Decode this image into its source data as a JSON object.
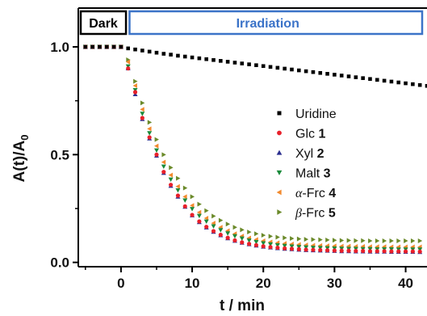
{
  "chart_data": {
    "type": "scatter",
    "xlabel": "t / min",
    "ylabel": "A(t)/A",
    "ylabel_subscript": "0",
    "xlim": [
      -6,
      43
    ],
    "ylim": [
      -0.02,
      1.18
    ],
    "xticks": [
      "0",
      "10",
      "20",
      "30",
      "40"
    ],
    "yticks": [
      "0.0",
      "0.5",
      "1.0"
    ],
    "annotations": {
      "dark": "Dark",
      "irradiation": "Irradiation",
      "dark_range": [
        -6,
        0.7
      ],
      "irradiation_range": [
        1.2,
        43
      ]
    },
    "legend_placement": "center-right",
    "series": [
      {
        "name": "Uridine",
        "label_plain": "Uridine",
        "color": "#000000",
        "marker": "square",
        "x": [
          -5,
          -4,
          -3,
          -2,
          -1,
          0,
          1,
          2,
          3,
          4,
          5,
          6,
          7,
          8,
          9,
          10,
          11,
          12,
          13,
          14,
          15,
          16,
          17,
          18,
          19,
          20,
          21,
          22,
          23,
          24,
          25,
          26,
          27,
          28,
          29,
          30,
          31,
          32,
          33,
          34,
          35,
          36,
          37,
          38,
          39,
          40,
          41,
          42,
          43
        ],
        "y": [
          1.0,
          1.0,
          1.0,
          1.0,
          1.0,
          1.0,
          0.993,
          0.988,
          0.983,
          0.978,
          0.973,
          0.968,
          0.964,
          0.959,
          0.955,
          0.951,
          0.947,
          0.943,
          0.939,
          0.935,
          0.931,
          0.927,
          0.923,
          0.919,
          0.915,
          0.911,
          0.907,
          0.903,
          0.899,
          0.895,
          0.891,
          0.887,
          0.883,
          0.879,
          0.875,
          0.871,
          0.867,
          0.863,
          0.859,
          0.855,
          0.851,
          0.847,
          0.843,
          0.839,
          0.835,
          0.831,
          0.827,
          0.823,
          0.819
        ]
      },
      {
        "name": "Glc 1",
        "label_plain": "Glc ",
        "label_bold": "1",
        "color": "#e8202a",
        "marker": "circle",
        "x": [
          -5,
          -4,
          -3,
          -2,
          -1,
          0,
          1,
          2,
          3,
          4,
          5,
          6,
          7,
          8,
          9,
          10,
          11,
          12,
          13,
          14,
          15,
          16,
          17,
          18,
          19,
          20,
          21,
          22,
          23,
          24,
          25,
          26,
          27,
          28,
          29,
          30,
          31,
          32,
          33,
          34,
          35,
          36,
          37,
          38,
          39,
          40,
          41,
          42
        ],
        "y": [
          1.0,
          1.0,
          1.0,
          1.0,
          1.0,
          1.0,
          0.9,
          0.79,
          0.67,
          0.58,
          0.5,
          0.42,
          0.36,
          0.31,
          0.26,
          0.22,
          0.19,
          0.165,
          0.145,
          0.128,
          0.114,
          0.102,
          0.093,
          0.086,
          0.08,
          0.075,
          0.071,
          0.068,
          0.065,
          0.063,
          0.061,
          0.059,
          0.058,
          0.057,
          0.056,
          0.055,
          0.054,
          0.054,
          0.053,
          0.053,
          0.052,
          0.052,
          0.052,
          0.051,
          0.051,
          0.051,
          0.051,
          0.05
        ]
      },
      {
        "name": "Xyl 2",
        "label_plain": "Xyl ",
        "label_bold": "2",
        "color": "#2b2f8f",
        "marker": "triangle-up",
        "x": [
          -5,
          -4,
          -3,
          -2,
          -1,
          0,
          1,
          2,
          3,
          4,
          5,
          6,
          7,
          8,
          9,
          10,
          11,
          12,
          13,
          14,
          15,
          16,
          17,
          18,
          19,
          20,
          21,
          22,
          23,
          24,
          25,
          26,
          27,
          28,
          29,
          30,
          31,
          32,
          33,
          34,
          35,
          36,
          37,
          38,
          39,
          40,
          41,
          42
        ],
        "y": [
          1.0,
          1.0,
          1.0,
          1.0,
          1.0,
          1.0,
          0.9,
          0.78,
          0.665,
          0.575,
          0.495,
          0.415,
          0.355,
          0.305,
          0.258,
          0.218,
          0.187,
          0.162,
          0.142,
          0.126,
          0.112,
          0.1,
          0.091,
          0.084,
          0.078,
          0.073,
          0.069,
          0.066,
          0.063,
          0.061,
          0.059,
          0.057,
          0.056,
          0.055,
          0.054,
          0.053,
          0.052,
          0.052,
          0.051,
          0.051,
          0.05,
          0.05,
          0.05,
          0.049,
          0.049,
          0.049,
          0.049,
          0.048
        ]
      },
      {
        "name": "Malt 3",
        "label_plain": "Malt ",
        "label_bold": "3",
        "color": "#1a8a3a",
        "marker": "triangle-down",
        "x": [
          -5,
          -4,
          -3,
          -2,
          -1,
          0,
          1,
          2,
          3,
          4,
          5,
          6,
          7,
          8,
          9,
          10,
          11,
          12,
          13,
          14,
          15,
          16,
          17,
          18,
          19,
          20,
          21,
          22,
          23,
          24,
          25,
          26,
          27,
          28,
          29,
          30,
          31,
          32,
          33,
          34,
          35,
          36,
          37,
          38,
          39,
          40,
          41,
          42
        ],
        "y": [
          1.0,
          1.0,
          1.0,
          1.0,
          1.0,
          1.0,
          0.91,
          0.8,
          0.69,
          0.6,
          0.52,
          0.445,
          0.385,
          0.335,
          0.288,
          0.248,
          0.216,
          0.19,
          0.168,
          0.15,
          0.135,
          0.122,
          0.111,
          0.102,
          0.095,
          0.089,
          0.084,
          0.08,
          0.077,
          0.074,
          0.072,
          0.07,
          0.068,
          0.067,
          0.066,
          0.065,
          0.064,
          0.063,
          0.063,
          0.062,
          0.062,
          0.061,
          0.061,
          0.061,
          0.06,
          0.06,
          0.06,
          0.06
        ]
      },
      {
        "name": "α-Frc 4",
        "label_italic": "α",
        "label_plain": "-Frc ",
        "label_bold": "4",
        "color": "#f28a2e",
        "marker": "triangle-left",
        "x": [
          -5,
          -4,
          -3,
          -2,
          -1,
          0,
          1,
          2,
          3,
          4,
          5,
          6,
          7,
          8,
          9,
          10,
          11,
          12,
          13,
          14,
          15,
          16,
          17,
          18,
          19,
          20,
          21,
          22,
          23,
          24,
          25,
          26,
          27,
          28,
          29,
          30,
          31,
          32,
          33,
          34,
          35,
          36,
          37,
          38,
          39,
          40,
          41,
          42
        ],
        "y": [
          1.0,
          1.0,
          1.0,
          1.0,
          1.0,
          1.0,
          0.93,
          0.82,
          0.71,
          0.62,
          0.54,
          0.465,
          0.405,
          0.352,
          0.305,
          0.264,
          0.232,
          0.205,
          0.182,
          0.163,
          0.147,
          0.133,
          0.122,
          0.113,
          0.106,
          0.1,
          0.095,
          0.091,
          0.088,
          0.085,
          0.083,
          0.081,
          0.079,
          0.078,
          0.077,
          0.076,
          0.075,
          0.075,
          0.074,
          0.074,
          0.073,
          0.073,
          0.073,
          0.072,
          0.072,
          0.072,
          0.072,
          0.072
        ]
      },
      {
        "name": "β-Frc 5",
        "label_italic": "β",
        "label_plain": "-Frc ",
        "label_bold": "5",
        "color": "#6b8a2a",
        "marker": "triangle-right",
        "x": [
          -5,
          -4,
          -3,
          -2,
          -1,
          0,
          1,
          2,
          3,
          4,
          5,
          6,
          7,
          8,
          9,
          10,
          11,
          12,
          13,
          14,
          15,
          16,
          17,
          18,
          19,
          20,
          21,
          22,
          23,
          24,
          25,
          26,
          27,
          28,
          29,
          30,
          31,
          32,
          33,
          34,
          35,
          36,
          37,
          38,
          39,
          40,
          41,
          42
        ],
        "y": [
          1.0,
          1.0,
          1.0,
          1.0,
          1.0,
          1.0,
          0.94,
          0.84,
          0.74,
          0.65,
          0.57,
          0.5,
          0.44,
          0.39,
          0.345,
          0.305,
          0.27,
          0.24,
          0.215,
          0.195,
          0.178,
          0.163,
          0.151,
          0.141,
          0.133,
          0.126,
          0.121,
          0.117,
          0.114,
          0.111,
          0.109,
          0.107,
          0.106,
          0.105,
          0.104,
          0.103,
          0.102,
          0.102,
          0.101,
          0.101,
          0.1,
          0.1,
          0.1,
          0.1,
          0.1,
          0.1,
          0.1,
          0.1
        ]
      }
    ]
  }
}
